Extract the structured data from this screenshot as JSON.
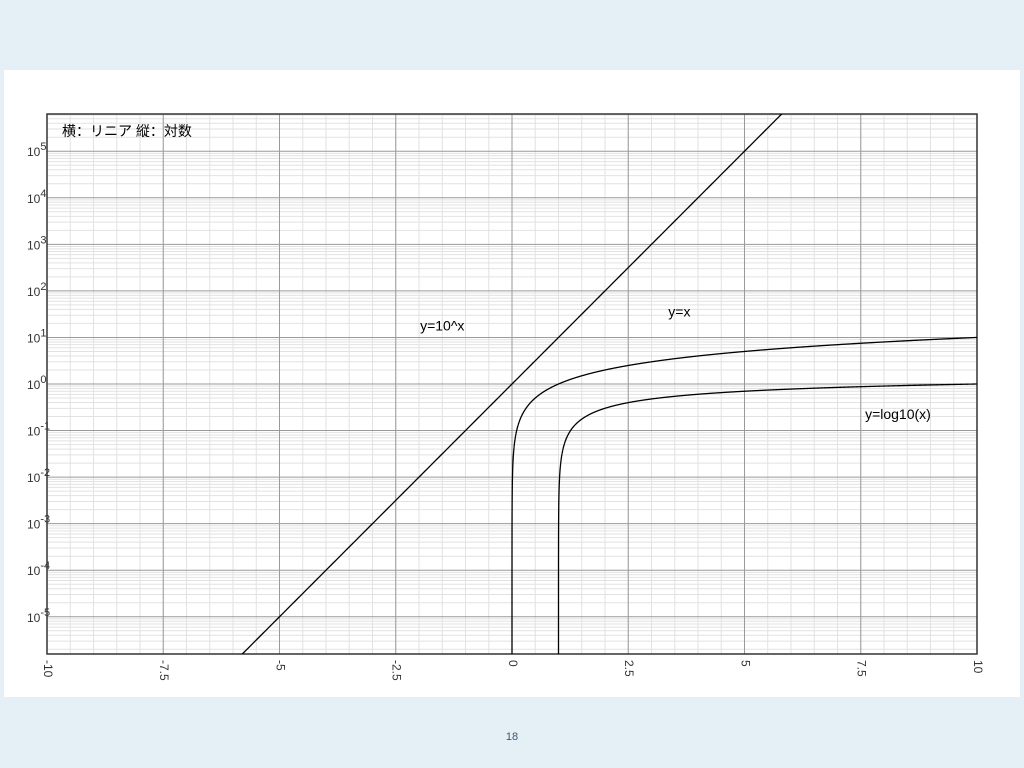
{
  "page": {
    "number": "18"
  },
  "chart_data": {
    "type": "line",
    "annotation": "横：リニア 縦：対数",
    "xlim": [
      -10,
      10
    ],
    "ylim": [
      -5.8,
      5.8
    ],
    "yscale": "log",
    "grid": true,
    "x_ticks": [
      -10,
      -7.5,
      -5,
      -2.5,
      0,
      2.5,
      5,
      7.5,
      10
    ],
    "x_tick_labels": [
      "-10",
      "-7.5",
      "-5",
      "-2.5",
      "0",
      "2.5",
      "5",
      "7.5",
      "10"
    ],
    "y_ticks": [
      -5,
      -4,
      -3,
      -2,
      -1,
      0,
      1,
      2,
      3,
      4,
      5
    ],
    "y_tick_base": "10",
    "y_tick_exponents": [
      "-5",
      "-4",
      "-3",
      "-2",
      "-1",
      "0",
      "1",
      "2",
      "3",
      "4",
      "5"
    ],
    "series": [
      {
        "name": "y=10^x",
        "function": "pow10",
        "x_range": [
          -6,
          10
        ]
      },
      {
        "name": "y=x",
        "function": "identity",
        "x_range": [
          0,
          10
        ]
      },
      {
        "name": "y=log10(x)",
        "function": "log10",
        "x_range": [
          1,
          10
        ]
      }
    ],
    "labels": [
      {
        "text": "y=10^x",
        "x": -1.5,
        "y": 1.15
      },
      {
        "text": "y=x",
        "x": 3.6,
        "y": 1.45
      },
      {
        "text": "y=log10(x)",
        "x": 8.3,
        "y": -0.75
      }
    ]
  }
}
